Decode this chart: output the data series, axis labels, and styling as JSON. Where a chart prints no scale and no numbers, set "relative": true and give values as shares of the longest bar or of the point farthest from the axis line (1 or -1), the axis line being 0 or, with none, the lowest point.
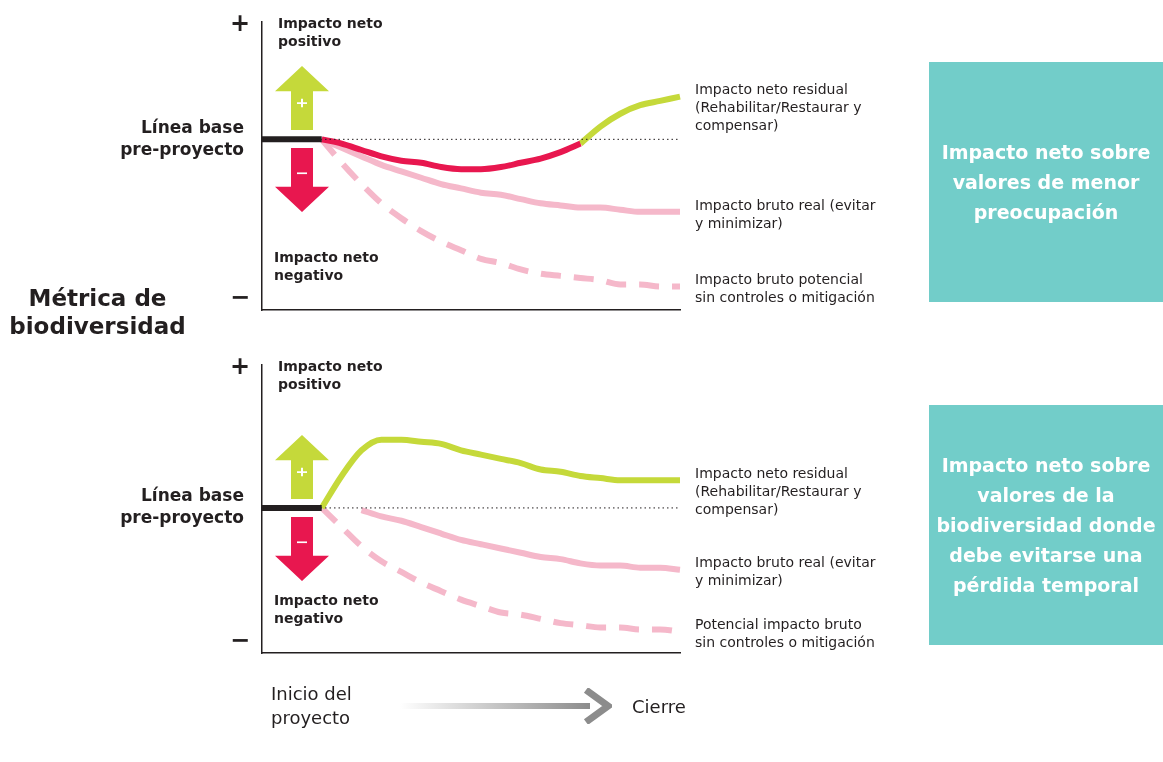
{
  "chart_data": [
    {
      "type": "line",
      "relative": true,
      "ylabel": "Métrica de biodiversidad",
      "categories": [
        null,
        null,
        null,
        null,
        null,
        null,
        null,
        null,
        null,
        null,
        null,
        null,
        null,
        null,
        null,
        null,
        null,
        null,
        null,
        null,
        null,
        null
      ],
      "series": [
        {
          "color": "#231f20",
          "values": [
            0.8,
            0.8,
            0.8,
            0.8,
            null,
            null,
            null,
            null,
            null,
            null,
            null,
            null,
            null,
            null,
            null,
            null,
            null,
            null,
            null,
            null,
            null,
            null
          ]
        },
        {
          "color": "#e8174f",
          "values": [
            null,
            null,
            null,
            0.8,
            0.78,
            0.75,
            0.72,
            0.7,
            0.69,
            0.67,
            0.66,
            0.66,
            0.67,
            0.69,
            0.71,
            0.74,
            0.78,
            null,
            null,
            null,
            null,
            null
          ]
        },
        {
          "name": "Impacto neto residual (Rehabilitar/Restaurar y compensar)",
          "color": "#c5d93a",
          "values": [
            null,
            null,
            null,
            null,
            null,
            null,
            null,
            null,
            null,
            null,
            null,
            null,
            null,
            null,
            null,
            null,
            0.78,
            0.86,
            0.92,
            0.96,
            0.98,
            1
          ]
        },
        {
          "name": "Impacto bruto real (evitar y minimizar)",
          "color": "#f5b8ca",
          "values": [
            null,
            null,
            null,
            0.8,
            0.76,
            0.72,
            0.68,
            0.65,
            0.62,
            0.59,
            0.57,
            0.55,
            0.54,
            0.52,
            0.5,
            0.49,
            0.48,
            0.48,
            0.47,
            0.46,
            0.46,
            0.46
          ]
        },
        {
          "name": "Impacto bruto potencial sin controles o mitigación",
          "color": "#f5b8ca",
          "line_style": "dashed",
          "values": [
            null,
            null,
            null,
            0.8,
            0.69,
            0.59,
            0.5,
            0.43,
            0.37,
            0.32,
            0.28,
            0.24,
            0.22,
            0.19,
            0.17,
            0.16,
            0.15,
            0.14,
            0.12,
            0.12,
            0.11,
            0.11
          ]
        }
      ],
      "ref_lines": [
        {
          "axis": "y",
          "value": 0.8,
          "label": "Línea base pre-proyecto",
          "color": "#231f20",
          "line_style": "dotted"
        }
      ],
      "annotations": [
        "+",
        "−",
        "Impacto neto positivo",
        "Impacto neto negativo",
        "Impacto neto sobre valores de menor preocupación"
      ]
    },
    {
      "type": "line",
      "relative": true,
      "categories": [
        null,
        null,
        null,
        null,
        null,
        null,
        null,
        null,
        null,
        null,
        null,
        null,
        null,
        null,
        null,
        null,
        null,
        null,
        null,
        null,
        null,
        null
      ],
      "series": [
        {
          "color": "#231f20",
          "values": [
            0.68,
            0.68,
            0.68,
            0.68,
            null,
            null,
            null,
            null,
            null,
            null,
            null,
            null,
            null,
            null,
            null,
            null,
            null,
            null,
            null,
            null,
            null,
            null
          ]
        },
        {
          "name": "Impacto neto residual (Rehabilitar/Restaurar y compensar)",
          "color": "#c5d93a",
          "values": [
            null,
            null,
            null,
            0.68,
            0.83,
            0.95,
            1.0,
            1.0,
            0.99,
            0.98,
            0.95,
            0.93,
            0.91,
            0.89,
            0.86,
            0.85,
            0.83,
            0.82,
            0.81,
            0.81,
            0.81,
            0.81
          ]
        },
        {
          "name": "Impacto bruto real (evitar y minimizar)",
          "color": "#f5b8ca",
          "values": [
            null,
            null,
            null,
            null,
            null,
            0.67,
            0.64,
            0.62,
            0.59,
            0.56,
            0.53,
            0.51,
            0.49,
            0.47,
            0.45,
            0.44,
            0.42,
            0.41,
            0.41,
            0.4,
            0.4,
            0.39
          ]
        },
        {
          "name": "Potencial impacto bruto sin controles o mitigación",
          "color": "#f5b8ca",
          "line_style": "dashed",
          "values": [
            null,
            null,
            null,
            0.68,
            0.59,
            0.5,
            0.43,
            0.38,
            0.33,
            0.29,
            0.25,
            0.22,
            0.19,
            0.18,
            0.16,
            0.14,
            0.13,
            0.12,
            0.12,
            0.11,
            0.11,
            0.1
          ]
        }
      ],
      "ref_lines": [
        {
          "axis": "y",
          "value": 0.68,
          "label": "Línea base pre-proyecto",
          "color": "#231f20",
          "line_style": "dotted"
        }
      ],
      "annotations": [
        "+",
        "−",
        "Impacto neto positivo",
        "Impacto neto negativo",
        "Impacto neto sobre valores de la biodiversidad donde debe evitarse una pérdida temporal",
        "Inicio del proyecto",
        "Cierre"
      ]
    }
  ]
}
